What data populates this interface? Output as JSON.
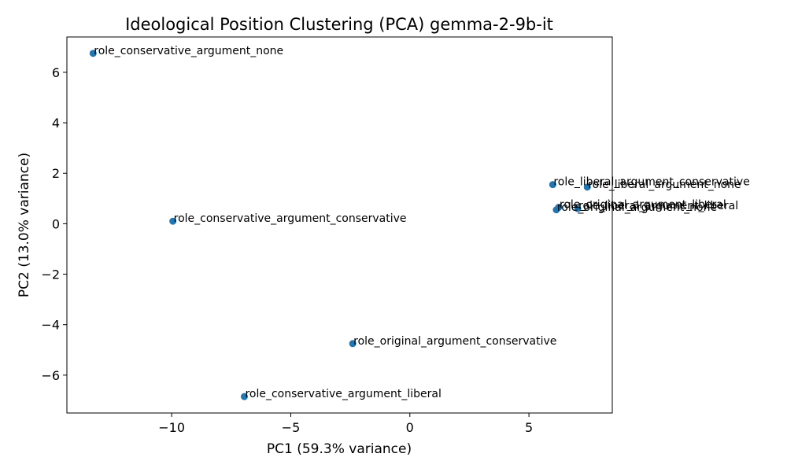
{
  "chart_data": {
    "type": "scatter",
    "title": "Ideological Position Clustering (PCA) gemma-2-9b-it",
    "xlabel": "PC1 (59.3% variance)",
    "ylabel": "PC2 (13.0% variance)",
    "xlim": [
      -14.4,
      8.5
    ],
    "ylim": [
      -7.5,
      7.4
    ],
    "xticks": [
      -10,
      -5,
      0,
      5
    ],
    "yticks": [
      -6,
      -4,
      -2,
      0,
      2,
      4,
      6
    ],
    "grid": false,
    "legend": "none",
    "marker_color": "#1f77b4",
    "points": [
      {
        "label": "role_conservative_argument_none",
        "x": -13.3,
        "y": 6.75
      },
      {
        "label": "role_conservative_argument_conservative",
        "x": -9.95,
        "y": 0.1
      },
      {
        "label": "role_original_argument_conservative",
        "x": -2.4,
        "y": -4.75
      },
      {
        "label": "role_conservative_argument_liberal",
        "x": -6.95,
        "y": -6.85
      },
      {
        "label": "role_liberal_argument_conservative",
        "x": 6.0,
        "y": 1.55
      },
      {
        "label": "role_liberal_argument_none",
        "x": 7.45,
        "y": 1.45
      },
      {
        "label": "role_original_argument_liberal",
        "x": 6.25,
        "y": 0.65
      },
      {
        "label": "role_liberal_argument_liberal",
        "x": 7.05,
        "y": 0.6
      },
      {
        "label": "role_original_argument_none",
        "x": 6.15,
        "y": 0.55
      }
    ]
  }
}
